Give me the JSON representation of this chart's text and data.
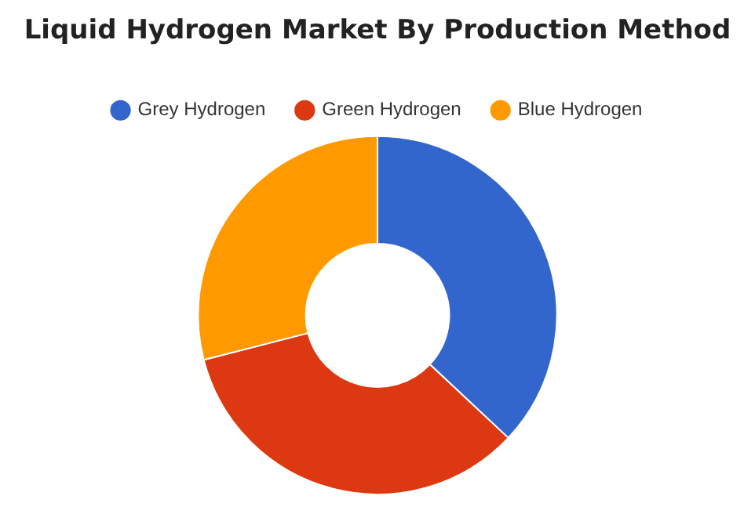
{
  "chart_data": {
    "type": "donut",
    "title": "Liquid Hydrogen Market By Production Method",
    "categories": [
      "Grey Hydrogen",
      "Green Hydrogen",
      "Blue Hydrogen"
    ],
    "values": [
      37,
      34,
      29
    ],
    "colors": [
      "#3366cc",
      "#dc3912",
      "#ff9900"
    ],
    "legend": "top"
  }
}
